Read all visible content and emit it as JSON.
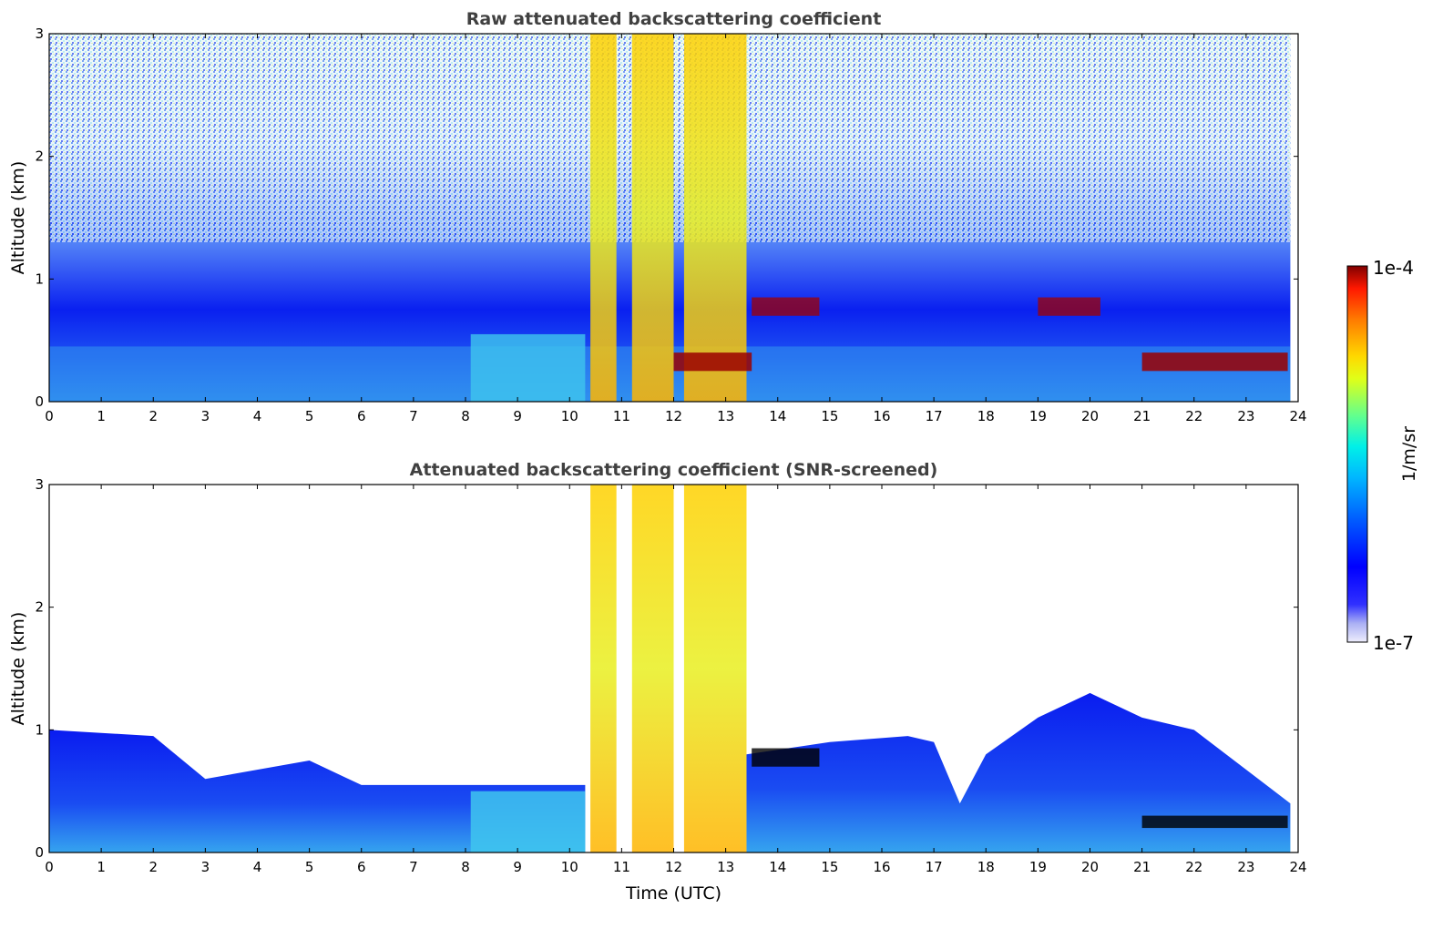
{
  "chart_data": [
    {
      "type": "heatmap",
      "title": "Raw attenuated backscattering coefficient",
      "xlabel": "",
      "ylabel": "Altitude (km)",
      "xlim": [
        0,
        24
      ],
      "ylim": [
        0,
        3
      ],
      "xticks": [
        "0",
        "1",
        "2",
        "3",
        "4",
        "5",
        "6",
        "7",
        "8",
        "9",
        "10",
        "11",
        "12",
        "13",
        "14",
        "15",
        "16",
        "17",
        "18",
        "19",
        "20",
        "21",
        "22",
        "23",
        "24"
      ],
      "yticks": [
        "0",
        "1",
        "2",
        "3"
      ],
      "features": {
        "boundary_layer_top_km": 0.5,
        "rain_shafts_utc": [
          [
            10.4,
            10.9
          ],
          [
            11.2,
            12.0
          ],
          [
            12.2,
            13.4
          ]
        ],
        "low_cloud_base_km": 0.3,
        "low_cloud_intervals_utc": [
          [
            12.0,
            13.5
          ],
          [
            21.0,
            23.8
          ]
        ],
        "mid_cloud_intervals_utc": [
          [
            13.5,
            14.8
          ],
          [
            19.0,
            20.2
          ]
        ]
      }
    },
    {
      "type": "heatmap",
      "title": "Attenuated backscattering coefficient (SNR-screened)",
      "xlabel": "Time (UTC)",
      "ylabel": "Altitude (km)",
      "xlim": [
        0,
        24
      ],
      "ylim": [
        0,
        3
      ],
      "xticks": [
        "0",
        "1",
        "2",
        "3",
        "4",
        "5",
        "6",
        "7",
        "8",
        "9",
        "10",
        "11",
        "12",
        "13",
        "14",
        "15",
        "16",
        "17",
        "18",
        "19",
        "20",
        "21",
        "22",
        "23",
        "24"
      ],
      "yticks": [
        "0",
        "1",
        "2",
        "3"
      ],
      "features": {
        "screened_aerosol_top_km": 1.0,
        "rain_shafts_utc": [
          [
            10.4,
            10.9
          ],
          [
            11.2,
            12.0
          ],
          [
            12.2,
            13.4
          ]
        ]
      }
    }
  ],
  "colorbar": {
    "label": "1/m/sr",
    "max_label": "1e-4",
    "min_label": "1e-7",
    "scale": "log"
  }
}
